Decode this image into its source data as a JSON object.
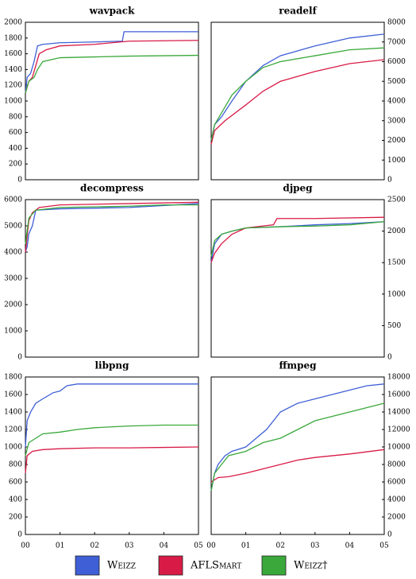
{
  "legend": [
    {
      "name": "Weizz",
      "color": "#3f5fd6"
    },
    {
      "name": "AFLSmart",
      "color": "#d81b46"
    },
    {
      "name": "Weizz†",
      "color": "#3aa83a"
    }
  ],
  "chart_data": [
    {
      "type": "line",
      "title": "wavpack",
      "xlim": [
        0,
        5
      ],
      "ylim": [
        0,
        2000
      ],
      "yticks": [
        0,
        200,
        400,
        600,
        800,
        1000,
        1200,
        1400,
        1600,
        1800,
        2000
      ],
      "y_axis_side": "left",
      "series": [
        {
          "x": [
            0,
            0.05,
            0.15,
            0.25,
            0.35,
            0.5,
            1,
            2,
            2.8,
            2.85,
            5
          ],
          "values": [
            1100,
            1300,
            1350,
            1500,
            1700,
            1720,
            1740,
            1750,
            1760,
            1880,
            1880
          ]
        },
        {
          "x": [
            0,
            0.1,
            0.2,
            0.4,
            0.6,
            1,
            2,
            3,
            5
          ],
          "values": [
            1100,
            1250,
            1300,
            1600,
            1650,
            1700,
            1720,
            1760,
            1770
          ]
        },
        {
          "x": [
            0,
            0.1,
            0.25,
            0.35,
            0.5,
            1,
            2,
            3,
            5
          ],
          "values": [
            1100,
            1250,
            1300,
            1400,
            1500,
            1550,
            1560,
            1570,
            1580
          ]
        }
      ]
    },
    {
      "type": "line",
      "title": "readelf",
      "xlim": [
        0,
        5
      ],
      "ylim": [
        0,
        8000
      ],
      "yticks": [
        0,
        1000,
        2000,
        3000,
        4000,
        5000,
        6000,
        7000,
        8000
      ],
      "y_axis_side": "right",
      "series": [
        {
          "x": [
            0,
            0.1,
            0.3,
            0.6,
            1,
            1.5,
            2,
            3,
            4,
            5
          ],
          "values": [
            2000,
            2800,
            3200,
            4000,
            5000,
            5800,
            6300,
            6800,
            7200,
            7400
          ]
        },
        {
          "x": [
            0,
            0.1,
            0.4,
            1,
            1.5,
            2,
            3,
            4,
            5
          ],
          "values": [
            1800,
            2500,
            3000,
            3800,
            4500,
            5000,
            5500,
            5900,
            6100
          ]
        },
        {
          "x": [
            0,
            0.1,
            0.3,
            0.6,
            1,
            1.5,
            2,
            3,
            4,
            5
          ],
          "values": [
            2000,
            2800,
            3400,
            4300,
            5000,
            5700,
            6000,
            6300,
            6600,
            6700
          ]
        }
      ]
    },
    {
      "type": "line",
      "title": "decompress",
      "xlim": [
        0,
        5
      ],
      "ylim": [
        0,
        6000
      ],
      "yticks": [
        0,
        1000,
        2000,
        3000,
        4000,
        5000,
        6000
      ],
      "y_axis_side": "left",
      "series": [
        {
          "x": [
            0,
            0.05,
            0.1,
            0.2,
            0.3,
            1,
            3,
            5
          ],
          "values": [
            4000,
            4200,
            4700,
            5000,
            5600,
            5650,
            5700,
            5850
          ]
        },
        {
          "x": [
            0,
            0.1,
            0.2,
            0.4,
            1,
            3,
            5
          ],
          "values": [
            4000,
            5200,
            5500,
            5700,
            5800,
            5850,
            5900
          ]
        },
        {
          "x": [
            0,
            0.1,
            0.3,
            1,
            3,
            4,
            5
          ],
          "values": [
            4300,
            5300,
            5600,
            5700,
            5750,
            5800,
            5800
          ]
        }
      ]
    },
    {
      "type": "line",
      "title": "djpeg",
      "xlim": [
        0,
        5
      ],
      "ylim": [
        0,
        2500
      ],
      "yticks": [
        0,
        500,
        1000,
        1500,
        2000,
        2500
      ],
      "y_axis_side": "right",
      "series": [
        {
          "x": [
            0,
            0.1,
            0.3,
            0.6,
            1,
            2,
            3,
            4,
            5
          ],
          "values": [
            1500,
            1800,
            1950,
            2000,
            2050,
            2070,
            2100,
            2120,
            2150
          ]
        },
        {
          "x": [
            0,
            0.1,
            0.3,
            0.6,
            1,
            1.8,
            1.9,
            3,
            5
          ],
          "values": [
            1500,
            1650,
            1800,
            1950,
            2050,
            2100,
            2200,
            2200,
            2220
          ]
        },
        {
          "x": [
            0,
            0.1,
            0.3,
            0.6,
            1,
            2,
            3,
            4,
            5
          ],
          "values": [
            1600,
            1850,
            1950,
            2000,
            2050,
            2070,
            2080,
            2100,
            2150
          ]
        }
      ]
    },
    {
      "type": "line",
      "title": "libpng",
      "xlim": [
        0,
        5
      ],
      "ylim": [
        0,
        1800
      ],
      "yticks": [
        0,
        200,
        400,
        600,
        800,
        1000,
        1200,
        1400,
        1600,
        1800
      ],
      "y_axis_side": "left",
      "xticks": [
        {
          "value": 0,
          "label": "00"
        },
        {
          "value": 1,
          "label": "01"
        },
        {
          "value": 2,
          "label": "02"
        },
        {
          "value": 3,
          "label": "03"
        },
        {
          "value": 4,
          "label": "04"
        },
        {
          "value": 5,
          "label": "05"
        }
      ],
      "series": [
        {
          "x": [
            0,
            0.05,
            0.15,
            0.3,
            0.5,
            0.8,
            1,
            1.2,
            1.5,
            5
          ],
          "values": [
            1000,
            1300,
            1400,
            1500,
            1550,
            1620,
            1640,
            1700,
            1720,
            1720
          ]
        },
        {
          "x": [
            0,
            0.05,
            0.2,
            0.5,
            1,
            2,
            3,
            4,
            5
          ],
          "values": [
            700,
            900,
            950,
            970,
            980,
            990,
            990,
            995,
            1000
          ]
        },
        {
          "x": [
            0,
            0.1,
            0.3,
            0.5,
            1,
            1.5,
            2,
            3,
            4,
            5
          ],
          "values": [
            900,
            1050,
            1100,
            1150,
            1170,
            1200,
            1220,
            1240,
            1250,
            1250
          ]
        }
      ]
    },
    {
      "type": "line",
      "title": "ffmpeg",
      "xlim": [
        0,
        5
      ],
      "ylim": [
        0,
        18000
      ],
      "yticks": [
        0,
        2000,
        4000,
        6000,
        8000,
        10000,
        12000,
        14000,
        16000,
        18000
      ],
      "y_axis_side": "right",
      "xticks": [
        {
          "value": 0,
          "label": "00"
        },
        {
          "value": 1,
          "label": "01"
        },
        {
          "value": 2,
          "label": "02"
        },
        {
          "value": 3,
          "label": "03"
        },
        {
          "value": 4,
          "label": "04"
        },
        {
          "value": 5,
          "label": "05"
        }
      ],
      "series": [
        {
          "x": [
            0,
            0.1,
            0.2,
            0.4,
            0.6,
            1,
            1.3,
            1.6,
            2,
            2.5,
            3,
            3.5,
            4,
            4.5,
            5
          ],
          "values": [
            5000,
            7000,
            8000,
            9000,
            9500,
            10000,
            11000,
            12000,
            14000,
            15000,
            15500,
            16000,
            16500,
            17000,
            17200
          ]
        },
        {
          "x": [
            0,
            0.2,
            0.5,
            1,
            1.5,
            2,
            2.5,
            3,
            4,
            5
          ],
          "values": [
            6000,
            6500,
            6600,
            7000,
            7500,
            8000,
            8500,
            8800,
            9200,
            9700
          ]
        },
        {
          "x": [
            0,
            0.1,
            0.3,
            0.5,
            1,
            1.5,
            2,
            2.5,
            3,
            3.5,
            4,
            4.5,
            5
          ],
          "values": [
            5000,
            7000,
            8000,
            9000,
            9500,
            10500,
            11000,
            12000,
            13000,
            13500,
            14000,
            14500,
            15000
          ]
        }
      ]
    }
  ]
}
